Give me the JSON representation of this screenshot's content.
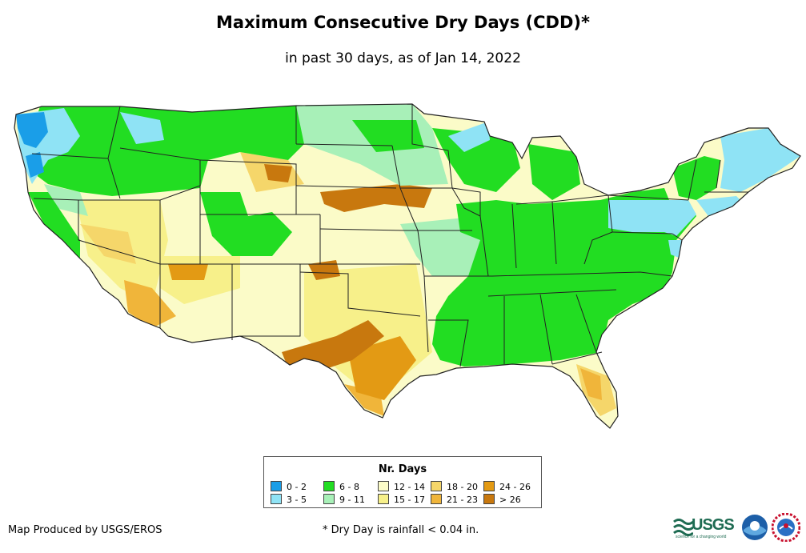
{
  "title": "Maximum Consecutive Dry Days (CDD)*",
  "subtitle": "in past 30 days, as of Jan 14, 2022",
  "legend": {
    "title": "Nr. Days",
    "items": [
      {
        "label": "0 - 2",
        "color": "#1a9ee8"
      },
      {
        "label": "3 - 5",
        "color": "#8fe3f5"
      },
      {
        "label": "6 - 8",
        "color": "#22dd22"
      },
      {
        "label": "9 - 11",
        "color": "#a8f0b8"
      },
      {
        "label": "12 - 14",
        "color": "#fbfbc8"
      },
      {
        "label": "15 - 17",
        "color": "#f7f08a"
      },
      {
        "label": "18 - 20",
        "color": "#f5d66a"
      },
      {
        "label": "21 - 23",
        "color": "#f0b53a"
      },
      {
        "label": "24 - 26",
        "color": "#e39a14"
      },
      {
        "label": "> 26",
        "color": "#c8780e"
      }
    ]
  },
  "credit": "Map Produced by USGS/EROS",
  "footnote": "* Dry Day is rainfall < 0.04 in.",
  "logos": {
    "usgs": "USGS",
    "usgs_tagline": "science for a changing world",
    "noaa_icon": "noaa-logo-icon",
    "nws_icon": "national-weather-service-logo-icon"
  }
}
